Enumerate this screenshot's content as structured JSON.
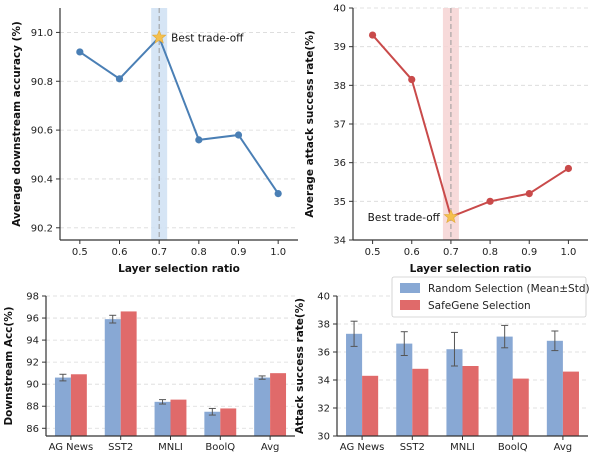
{
  "colors": {
    "blue_line": "#4a7fb5",
    "red_line": "#c94a4a",
    "bar_blue": "#88a8d4",
    "bar_red": "#e06a6a",
    "highlight_blue": "#cfe0f3",
    "highlight_red": "#f6d4d4",
    "grid": "#d9d9d9",
    "star": "#f4c04e"
  },
  "chart_data": [
    {
      "id": "top-left",
      "type": "line",
      "x": [
        0.5,
        0.6,
        0.7,
        0.8,
        0.9,
        1.0
      ],
      "x_tick_labels": [
        "0.5",
        "0.6",
        "0.7",
        "0.8",
        "0.9",
        "1.0"
      ],
      "series": [
        {
          "values": [
            90.92,
            90.81,
            90.98,
            90.56,
            90.58,
            90.34
          ]
        }
      ],
      "xlabel": "Layer selection ratio",
      "ylabel": "Average downstream accuracy (%)",
      "ylim": [
        90.15,
        91.1
      ],
      "yticks": [
        "90.2",
        "90.4",
        "90.6",
        "90.8",
        "91.0"
      ],
      "highlight_x": 0.7,
      "annotation": "Best trade-off",
      "grid": "horizontal dashed"
    },
    {
      "id": "top-right",
      "type": "line",
      "x": [
        0.5,
        0.6,
        0.7,
        0.8,
        0.9,
        1.0
      ],
      "x_tick_labels": [
        "0.5",
        "0.6",
        "0.7",
        "0.8",
        "0.9",
        "1.0"
      ],
      "series": [
        {
          "values": [
            39.3,
            38.15,
            34.6,
            35.0,
            35.2,
            35.85
          ]
        }
      ],
      "xlabel": "Layer selection ratio",
      "ylabel": "Average attack success rate(%)",
      "ylim": [
        34,
        40
      ],
      "yticks": [
        "34",
        "35",
        "36",
        "37",
        "38",
        "39",
        "40"
      ],
      "highlight_x": 0.7,
      "annotation": "Best trade-off",
      "grid": "horizontal dashed"
    },
    {
      "id": "bottom-left",
      "type": "bar",
      "categories": [
        "AG News",
        "SST2",
        "MNLI",
        "BoolQ",
        "Avg"
      ],
      "series": [
        {
          "values": [
            90.6,
            95.9,
            88.4,
            87.5,
            90.6
          ],
          "errors": [
            0.3,
            0.35,
            0.2,
            0.3,
            0.15
          ]
        },
        {
          "values": [
            90.9,
            96.6,
            88.6,
            87.8,
            91.0
          ]
        }
      ],
      "ylabel": "Downstream Acc(%)",
      "ylim": [
        85.3,
        98
      ],
      "yticks": [
        "86",
        "88",
        "90",
        "92",
        "94",
        "96",
        "98"
      ],
      "grid": "horizontal dashed"
    },
    {
      "id": "bottom-right",
      "type": "bar",
      "categories": [
        "AG News",
        "SST2",
        "MNLI",
        "BoolQ",
        "Avg"
      ],
      "series": [
        {
          "name": "Random Selection (Mean±Std)",
          "values": [
            37.3,
            36.6,
            36.2,
            37.1,
            36.8
          ],
          "errors": [
            0.9,
            0.85,
            1.2,
            0.8,
            0.7
          ]
        },
        {
          "name": "SafeGene Selection",
          "values": [
            34.3,
            34.8,
            35.0,
            34.1,
            34.6
          ]
        }
      ],
      "ylabel": "Attack success rate(%)",
      "ylim": [
        30,
        40
      ],
      "yticks": [
        "30",
        "32",
        "34",
        "36",
        "38",
        "40"
      ],
      "legend": "top-right",
      "grid": "horizontal dashed"
    }
  ]
}
